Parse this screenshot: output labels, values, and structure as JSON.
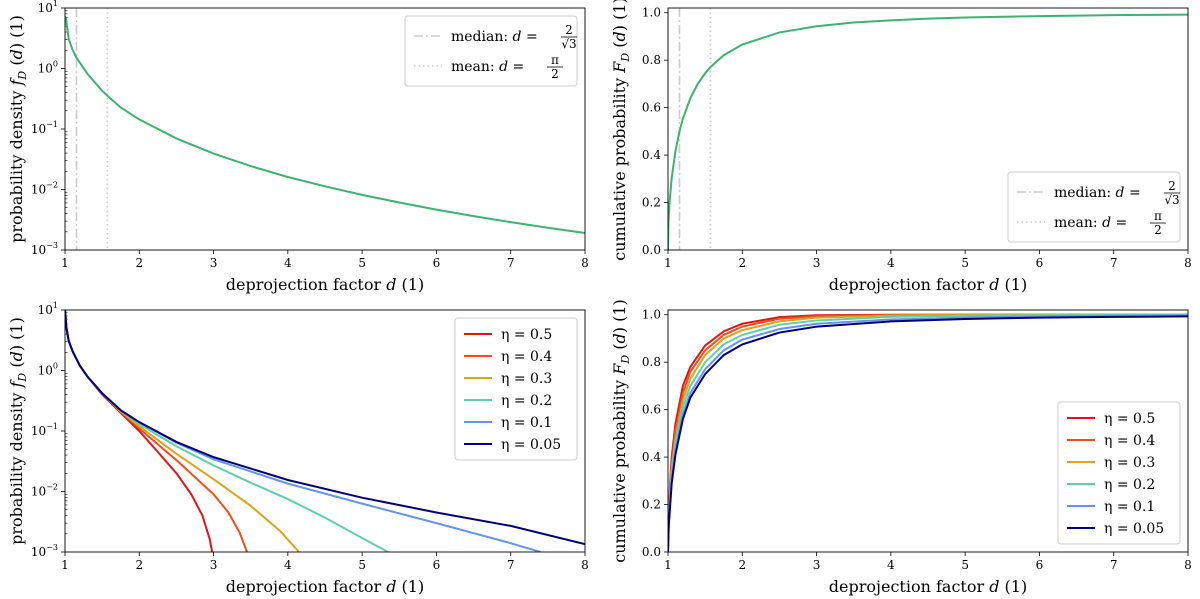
{
  "chart_data": [
    {
      "type": "line",
      "panel": "top-left",
      "xlabel": "deprojection factor d (1)",
      "ylabel": "probability density f_D (d) (1)",
      "xlim": [
        1,
        8
      ],
      "ylim": [
        0.001,
        10
      ],
      "yscale": "log",
      "x_ticks": [
        1,
        2,
        3,
        4,
        5,
        6,
        7,
        8
      ],
      "y_ticks": [
        0.001,
        0.01,
        0.1,
        1,
        10
      ],
      "y_tick_labels": [
        {
          "base": "10",
          "exp": "−3"
        },
        {
          "base": "10",
          "exp": "−2"
        },
        {
          "base": "10",
          "exp": "−1"
        },
        {
          "base": "10",
          "exp": "0"
        },
        {
          "base": "10",
          "exp": "1"
        }
      ],
      "legend_position": "top-right",
      "grid": false,
      "series": [
        {
          "color": "#3cb371",
          "x": [
            1.0,
            1.01,
            1.05,
            1.1,
            1.155,
            1.2,
            1.3,
            1.5,
            1.571,
            1.75,
            2,
            2.5,
            3,
            3.5,
            4,
            4.5,
            5,
            5.5,
            6,
            6.5,
            7,
            7.5,
            8
          ],
          "y": [
            7.12,
            6.99,
            3.06,
            2.07,
            1.5,
            1.25,
            0.823,
            0.427,
            0.354,
            0.227,
            0.144,
            0.0699,
            0.0393,
            0.0244,
            0.0161,
            0.0113,
            0.00816,
            0.00609,
            0.00465,
            0.00363,
            0.00289,
            0.00233,
            0.00191
          ]
        }
      ],
      "reference_lines": [
        {
          "name": "median",
          "label_text": "median:",
          "formula": {
            "lhs": "d =",
            "num": "2",
            "den": "√3"
          },
          "x": 1.1547,
          "style": "dash-dot",
          "color": "#cccccc"
        },
        {
          "name": "mean",
          "label_text": "mean:",
          "formula": {
            "lhs": "d =",
            "num": "π",
            "den": "2"
          },
          "x": 1.5708,
          "style": "dotted",
          "color": "#cccccc"
        }
      ]
    },
    {
      "type": "line",
      "panel": "top-right",
      "xlabel": "deprojection factor d (1)",
      "ylabel": "cumulative probability F_D (d) (1)",
      "xlim": [
        1,
        8
      ],
      "ylim": [
        0,
        1.02
      ],
      "yscale": "linear",
      "x_ticks": [
        1,
        2,
        3,
        4,
        5,
        6,
        7,
        8
      ],
      "y_ticks": [
        0.0,
        0.2,
        0.4,
        0.6,
        0.8,
        1.0
      ],
      "y_tick_labels": [
        "0.0",
        "0.2",
        "0.4",
        "0.6",
        "0.8",
        "1.0"
      ],
      "legend_position": "bottom-right",
      "grid": false,
      "series": [
        {
          "color": "#3cb371",
          "x": [
            1.0,
            1.005,
            1.01,
            1.02,
            1.05,
            1.1,
            1.155,
            1.2,
            1.3,
            1.4,
            1.5,
            1.571,
            1.75,
            2,
            2.5,
            3,
            3.5,
            4,
            4.5,
            5,
            5.5,
            6,
            6.5,
            7,
            7.5,
            8
          ],
          "y": [
            0.0,
            0.099,
            0.14,
            0.196,
            0.305,
            0.417,
            0.5,
            0.553,
            0.639,
            0.7,
            0.745,
            0.771,
            0.821,
            0.866,
            0.917,
            0.943,
            0.959,
            0.968,
            0.975,
            0.98,
            0.983,
            0.986,
            0.988,
            0.99,
            0.991,
            0.992
          ]
        }
      ],
      "reference_lines": [
        {
          "name": "median",
          "label_text": "median:",
          "formula": {
            "lhs": "d =",
            "num": "2",
            "den": "√3"
          },
          "x": 1.1547,
          "style": "dash-dot",
          "color": "#cccccc"
        },
        {
          "name": "mean",
          "label_text": "mean:",
          "formula": {
            "lhs": "d =",
            "num": "π",
            "den": "2"
          },
          "x": 1.5708,
          "style": "dotted",
          "color": "#cccccc"
        }
      ]
    },
    {
      "type": "line",
      "panel": "bottom-left",
      "xlabel": "deprojection factor d (1)",
      "ylabel": "probability density f_D (d) (1)",
      "xlim": [
        1,
        8
      ],
      "ylim": [
        0.001,
        10
      ],
      "yscale": "log",
      "x_ticks": [
        1,
        2,
        3,
        4,
        5,
        6,
        7,
        8
      ],
      "y_ticks": [
        0.001,
        0.01,
        0.1,
        1,
        10
      ],
      "y_tick_labels": [
        {
          "base": "10",
          "exp": "−3"
        },
        {
          "base": "10",
          "exp": "−2"
        },
        {
          "base": "10",
          "exp": "−1"
        },
        {
          "base": "10",
          "exp": "0"
        },
        {
          "base": "10",
          "exp": "1"
        }
      ],
      "legend_position": "top-right",
      "grid": false,
      "series": [
        {
          "name": "η = 0.5",
          "color": "#d7191c",
          "x": [
            1.0,
            1.02,
            1.05,
            1.1,
            1.2,
            1.3,
            1.5,
            1.75,
            2,
            2.25,
            2.5,
            2.7,
            2.85,
            2.95,
            2.98
          ],
          "y": [
            10,
            5.0,
            3.1,
            2.1,
            1.2,
            0.8,
            0.4,
            0.2,
            0.1,
            0.045,
            0.02,
            0.009,
            0.004,
            0.0016,
            0.001
          ]
        },
        {
          "name": "η = 0.4",
          "color": "#f04e1a",
          "x": [
            1.0,
            1.02,
            1.05,
            1.1,
            1.2,
            1.3,
            1.5,
            1.75,
            2,
            2.5,
            3,
            3.2,
            3.35,
            3.45
          ],
          "y": [
            10,
            5.0,
            3.1,
            2.1,
            1.2,
            0.8,
            0.41,
            0.21,
            0.11,
            0.033,
            0.009,
            0.0045,
            0.0021,
            0.001
          ]
        },
        {
          "name": "η = 0.3",
          "color": "#dda21c",
          "x": [
            1.0,
            1.02,
            1.05,
            1.1,
            1.2,
            1.3,
            1.5,
            1.75,
            2,
            2.5,
            3,
            3.5,
            3.9,
            4.15
          ],
          "y": [
            10,
            5.0,
            3.1,
            2.1,
            1.2,
            0.8,
            0.42,
            0.21,
            0.12,
            0.042,
            0.016,
            0.0058,
            0.0022,
            0.001
          ]
        },
        {
          "name": "η = 0.2",
          "color": "#5fd0a6",
          "x": [
            1.0,
            1.02,
            1.05,
            1.1,
            1.2,
            1.3,
            1.5,
            1.75,
            2,
            2.5,
            3,
            3.5,
            4,
            4.5,
            5,
            5.35
          ],
          "y": [
            10,
            5.0,
            3.1,
            2.1,
            1.2,
            0.8,
            0.42,
            0.22,
            0.13,
            0.056,
            0.027,
            0.014,
            0.0075,
            0.0037,
            0.0017,
            0.001
          ]
        },
        {
          "name": "η = 0.1",
          "color": "#6495ed",
          "x": [
            1.0,
            1.02,
            1.05,
            1.1,
            1.2,
            1.3,
            1.5,
            1.75,
            2,
            2.5,
            3,
            4,
            5,
            6,
            7,
            7.4
          ],
          "y": [
            10,
            5.0,
            3.1,
            2.1,
            1.2,
            0.8,
            0.42,
            0.22,
            0.14,
            0.064,
            0.034,
            0.0135,
            0.0063,
            0.003,
            0.0014,
            0.001
          ]
        },
        {
          "name": "η = 0.05",
          "color": "#00007f",
          "x": [
            1.0,
            1.02,
            1.05,
            1.1,
            1.2,
            1.3,
            1.5,
            1.75,
            2,
            2.5,
            3,
            4,
            5,
            6,
            7,
            8
          ],
          "y": [
            10,
            5.0,
            3.1,
            2.1,
            1.2,
            0.8,
            0.42,
            0.22,
            0.14,
            0.066,
            0.037,
            0.0155,
            0.0079,
            0.0045,
            0.0027,
            0.00135
          ]
        }
      ]
    },
    {
      "type": "line",
      "panel": "bottom-right",
      "xlabel": "deprojection factor d (1)",
      "ylabel": "cumulative probability F_D (d) (1)",
      "xlim": [
        1,
        8
      ],
      "ylim": [
        0,
        1.02
      ],
      "yscale": "linear",
      "x_ticks": [
        1,
        2,
        3,
        4,
        5,
        6,
        7,
        8
      ],
      "y_ticks": [
        0.0,
        0.2,
        0.4,
        0.6,
        0.8,
        1.0
      ],
      "y_tick_labels": [
        "0.0",
        "0.2",
        "0.4",
        "0.6",
        "0.8",
        "1.0"
      ],
      "legend_position": "bottom-right",
      "grid": false,
      "series": [
        {
          "name": "η = 0.5",
          "color": "#d7191c",
          "x": [
            1.0,
            1.01,
            1.03,
            1.05,
            1.1,
            1.2,
            1.3,
            1.5,
            1.75,
            2,
            2.5,
            3,
            4,
            5,
            6,
            7,
            8
          ],
          "y": [
            0.0,
            0.16,
            0.3,
            0.4,
            0.54,
            0.7,
            0.78,
            0.87,
            0.93,
            0.962,
            0.99,
            0.998,
            1.0,
            1.0,
            1.0,
            1.0,
            1.0
          ]
        },
        {
          "name": "η = 0.4",
          "color": "#f04e1a",
          "x": [
            1.0,
            1.01,
            1.03,
            1.05,
            1.1,
            1.2,
            1.3,
            1.5,
            1.75,
            2,
            2.5,
            3,
            4,
            5,
            6,
            7,
            8
          ],
          "y": [
            0.0,
            0.15,
            0.28,
            0.37,
            0.51,
            0.67,
            0.76,
            0.85,
            0.915,
            0.95,
            0.983,
            0.994,
            0.999,
            1.0,
            1.0,
            1.0,
            1.0
          ]
        },
        {
          "name": "η = 0.3",
          "color": "#dda21c",
          "x": [
            1.0,
            1.01,
            1.03,
            1.05,
            1.1,
            1.2,
            1.3,
            1.5,
            1.75,
            2,
            2.5,
            3,
            4,
            5,
            6,
            7,
            8
          ],
          "y": [
            0.0,
            0.14,
            0.26,
            0.35,
            0.48,
            0.64,
            0.73,
            0.83,
            0.9,
            0.935,
            0.972,
            0.988,
            0.997,
            0.999,
            1.0,
            1.0,
            1.0
          ]
        },
        {
          "name": "η = 0.2",
          "color": "#5fd0a6",
          "x": [
            1.0,
            1.01,
            1.03,
            1.05,
            1.1,
            1.2,
            1.3,
            1.5,
            1.75,
            2,
            2.5,
            3,
            4,
            5,
            6,
            7,
            8
          ],
          "y": [
            0.0,
            0.13,
            0.24,
            0.33,
            0.46,
            0.61,
            0.7,
            0.8,
            0.875,
            0.915,
            0.958,
            0.976,
            0.991,
            0.996,
            0.998,
            0.999,
            1.0
          ]
        },
        {
          "name": "η = 0.1",
          "color": "#6495ed",
          "x": [
            1.0,
            1.01,
            1.03,
            1.05,
            1.1,
            1.2,
            1.3,
            1.5,
            1.75,
            2,
            2.5,
            3,
            4,
            5,
            6,
            7,
            8
          ],
          "y": [
            0.0,
            0.12,
            0.22,
            0.31,
            0.43,
            0.58,
            0.67,
            0.77,
            0.85,
            0.895,
            0.94,
            0.962,
            0.98,
            0.988,
            0.992,
            0.995,
            0.997
          ]
        },
        {
          "name": "η = 0.05",
          "color": "#00007f",
          "x": [
            1.0,
            1.01,
            1.03,
            1.05,
            1.1,
            1.2,
            1.3,
            1.5,
            1.75,
            2,
            2.5,
            3,
            4,
            5,
            6,
            7,
            8
          ],
          "y": [
            0.0,
            0.11,
            0.2,
            0.29,
            0.41,
            0.56,
            0.65,
            0.75,
            0.83,
            0.875,
            0.925,
            0.95,
            0.972,
            0.982,
            0.988,
            0.991,
            0.993
          ]
        }
      ]
    }
  ]
}
